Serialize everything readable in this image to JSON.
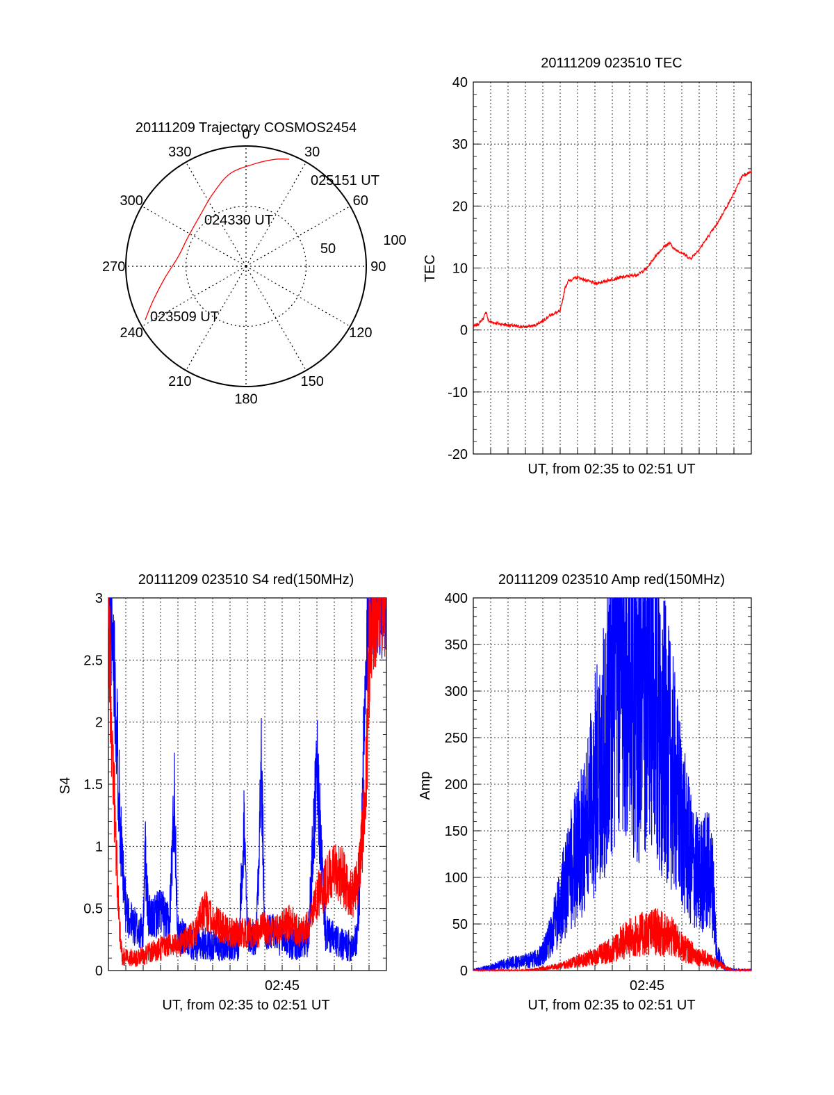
{
  "colors": {
    "red": "#ff0000",
    "blue": "#0000ff",
    "axis": "#000000",
    "grid": "#000000",
    "background": "#ffffff"
  },
  "polar": {
    "title": "20111209 Trajectory COSMOS2454",
    "angle_labels": [
      "0",
      "30",
      "60",
      "90",
      "120",
      "150",
      "180",
      "210",
      "240",
      "270",
      "300",
      "330"
    ],
    "radius_labels": [
      "50",
      "100"
    ],
    "point_labels": [
      "025151 UT",
      "024330 UT",
      "023509 UT"
    ]
  },
  "tec": {
    "title": "20111209 023510 TEC",
    "ylabel": "TEC",
    "xlabel": "UT, from 02:35 to 02:51 UT",
    "ytick_labels": [
      "40",
      "30",
      "20",
      "10",
      "0",
      "-10",
      "-20"
    ]
  },
  "s4": {
    "title": "20111209 023510 S4 red(150MHz)",
    "ylabel": "S4",
    "xlabel": "UT, from 02:35 to 02:51 UT",
    "ytick_labels": [
      "3",
      "2.5",
      "2",
      "1.5",
      "1",
      "0.5",
      "0"
    ],
    "xtick_label": "02:45"
  },
  "amp": {
    "title": "20111209 023510 Amp red(150MHz)",
    "ylabel": "Amp",
    "xlabel": "UT, from 02:35 to 02:51 UT",
    "ytick_labels": [
      "400",
      "350",
      "300",
      "250",
      "200",
      "150",
      "100",
      "50",
      "0"
    ],
    "xtick_label": "02:45"
  },
  "chart_data": [
    {
      "type": "polar",
      "title": "20111209 Trajectory COSMOS2454",
      "angle_ticks": [
        0,
        30,
        60,
        90,
        120,
        150,
        180,
        210,
        240,
        270,
        300,
        330
      ],
      "radius_ticks": [
        50,
        100
      ],
      "rlim": [
        0,
        100
      ],
      "direction": "clockwise",
      "zero_location": "top",
      "grid": true,
      "series": [
        {
          "color": "red",
          "points": [
            {
              "azimuth": 242,
              "radius": 95
            },
            {
              "azimuth": 250,
              "radius": 82
            },
            {
              "azimuth": 262,
              "radius": 68
            },
            {
              "azimuth": 278,
              "radius": 57
            },
            {
              "azimuth": 297,
              "radius": 54
            },
            {
              "azimuth": 318,
              "radius": 57
            },
            {
              "azimuth": 335,
              "radius": 66
            },
            {
              "azimuth": 350,
              "radius": 78
            },
            {
              "azimuth": 4,
              "radius": 85
            },
            {
              "azimuth": 15,
              "radius": 92
            },
            {
              "azimuth": 22,
              "radius": 96
            }
          ]
        }
      ],
      "annotations": [
        {
          "text": "023509 UT",
          "azimuth": 242,
          "radius": 95
        },
        {
          "text": "024330 UT",
          "azimuth": 300,
          "radius": 54
        },
        {
          "text": "025151 UT",
          "azimuth": 22,
          "radius": 96
        }
      ]
    },
    {
      "type": "line",
      "title": "20111209 023510 TEC",
      "ylabel": "TEC",
      "xlabel": "UT, from 02:35 to 02:51 UT",
      "xlim": [
        0,
        16
      ],
      "ylim": [
        -20,
        40
      ],
      "yticks": [
        -20,
        -10,
        0,
        10,
        20,
        30,
        40
      ],
      "grid": true,
      "series": [
        {
          "color": "red",
          "x": [
            0.0,
            0.3,
            0.6,
            0.75,
            0.85,
            1.0,
            1.5,
            2.0,
            2.5,
            3.0,
            3.5,
            4.0,
            4.5,
            5.0,
            5.3,
            5.5,
            6.0,
            6.5,
            7.0,
            7.5,
            8.0,
            8.5,
            9.0,
            9.5,
            10.0,
            10.5,
            11.0,
            11.3,
            11.6,
            12.0,
            12.5,
            13.0,
            13.5,
            14.0,
            14.5,
            15.0,
            15.5,
            16.0
          ],
          "y": [
            0.5,
            1.0,
            2.0,
            3.0,
            1.5,
            1.3,
            1.0,
            0.8,
            0.6,
            0.5,
            0.7,
            1.5,
            2.5,
            3.0,
            7.0,
            8.0,
            8.5,
            8.0,
            7.5,
            7.8,
            8.2,
            8.5,
            8.7,
            9.0,
            10.0,
            12.0,
            13.5,
            14.0,
            13.0,
            12.5,
            11.5,
            13.0,
            15.0,
            17.0,
            19.5,
            22.0,
            25.0,
            25.5
          ]
        }
      ]
    },
    {
      "type": "line",
      "title": "20111209 023510 S4 red(150MHz)",
      "ylabel": "S4",
      "xlabel": "UT, from 02:35 to 02:51 UT",
      "xlim": [
        0,
        16
      ],
      "ylim": [
        0,
        3
      ],
      "yticks": [
        0,
        0.5,
        1,
        1.5,
        2,
        2.5,
        3
      ],
      "xticks": [
        10
      ],
      "xtick_labels": [
        "02:45"
      ],
      "grid": true,
      "series": [
        {
          "color": "blue",
          "x": [
            0.0,
            0.3,
            0.6,
            0.8,
            1.0,
            1.3,
            1.5,
            2.0,
            2.1,
            2.3,
            2.5,
            3.0,
            3.5,
            3.8,
            4.0,
            4.5,
            5.0,
            5.5,
            6.0,
            6.5,
            7.0,
            7.5,
            7.8,
            8.0,
            8.5,
            8.8,
            9.0,
            9.5,
            10.0,
            10.5,
            11.0,
            11.5,
            12.0,
            12.5,
            13.0,
            13.5,
            14.0,
            14.3,
            14.5,
            14.8,
            15.0,
            15.5,
            16.0
          ],
          "x_note": "minutes after 02:35",
          "y": [
            3.0,
            2.6,
            1.5,
            0.8,
            0.5,
            0.4,
            0.35,
            0.3,
            1.0,
            0.45,
            0.4,
            0.5,
            0.35,
            1.4,
            0.3,
            0.25,
            0.2,
            0.22,
            0.2,
            0.2,
            0.22,
            0.2,
            1.2,
            0.3,
            0.25,
            1.65,
            0.3,
            0.3,
            0.25,
            0.22,
            0.2,
            0.25,
            1.6,
            0.3,
            0.25,
            0.2,
            0.2,
            0.25,
            0.8,
            2.2,
            3.0,
            3.0,
            3.0
          ]
        },
        {
          "color": "red",
          "x": [
            0.0,
            0.3,
            0.6,
            0.8,
            1.0,
            1.5,
            2.0,
            2.5,
            3.0,
            3.5,
            4.0,
            4.5,
            5.0,
            5.5,
            6.0,
            6.5,
            7.0,
            7.5,
            8.0,
            8.5,
            9.0,
            9.5,
            10.0,
            10.5,
            11.0,
            11.5,
            12.0,
            12.5,
            13.0,
            13.5,
            14.0,
            14.3,
            14.5,
            14.8,
            15.0,
            15.5,
            16.0
          ],
          "y": [
            2.8,
            1.5,
            0.4,
            0.12,
            0.1,
            0.1,
            0.12,
            0.15,
            0.18,
            0.2,
            0.2,
            0.25,
            0.3,
            0.5,
            0.4,
            0.35,
            0.3,
            0.3,
            0.3,
            0.3,
            0.35,
            0.3,
            0.35,
            0.4,
            0.3,
            0.35,
            0.6,
            0.7,
            0.8,
            0.75,
            0.6,
            0.7,
            0.9,
            1.4,
            2.5,
            3.0,
            3.0
          ]
        }
      ]
    },
    {
      "type": "line",
      "title": "20111209 023510 Amp red(150MHz)",
      "ylabel": "Amp",
      "xlabel": "UT, from 02:35 to 02:51 UT",
      "xlim": [
        0,
        16
      ],
      "ylim": [
        0,
        400
      ],
      "yticks": [
        0,
        50,
        100,
        150,
        200,
        250,
        300,
        350,
        400
      ],
      "xticks": [
        10
      ],
      "xtick_labels": [
        "02:45"
      ],
      "grid": true,
      "series": [
        {
          "color": "blue",
          "x": [
            0.0,
            1.0,
            2.0,
            3.0,
            3.5,
            4.0,
            4.5,
            5.0,
            5.5,
            6.0,
            6.5,
            7.0,
            7.5,
            8.0,
            8.5,
            9.0,
            9.5,
            10.0,
            10.5,
            11.0,
            11.5,
            12.0,
            12.5,
            13.0,
            13.5,
            13.8,
            14.0,
            14.5,
            15.0,
            16.0
          ],
          "y": [
            0,
            3,
            8,
            10,
            12,
            18,
            40,
            70,
            100,
            130,
            150,
            200,
            230,
            300,
            340,
            320,
            280,
            300,
            270,
            250,
            210,
            160,
            120,
            100,
            110,
            90,
            20,
            2,
            0,
            0
          ]
        },
        {
          "color": "red",
          "x": [
            0.0,
            3.0,
            4.0,
            5.0,
            6.0,
            7.0,
            8.0,
            8.5,
            9.0,
            9.5,
            10.0,
            10.5,
            11.0,
            11.5,
            12.0,
            12.5,
            13.0,
            13.5,
            14.0,
            14.5,
            15.0,
            16.0
          ],
          "y": [
            0,
            0,
            2,
            5,
            10,
            15,
            22,
            30,
            35,
            38,
            40,
            42,
            38,
            35,
            25,
            20,
            15,
            12,
            8,
            3,
            0,
            0
          ]
        }
      ]
    }
  ]
}
